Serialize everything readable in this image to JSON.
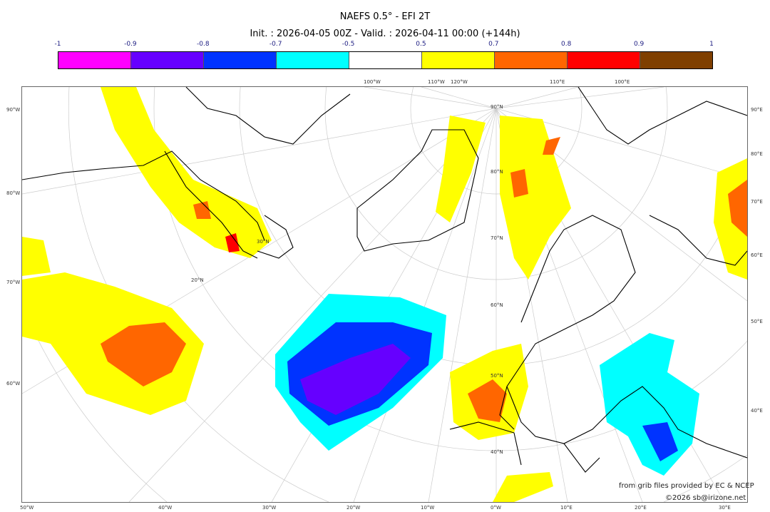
{
  "header": {
    "title": "NAEFS 0.5° - EFI 2T",
    "subtitle": "Init. : 2026-04-05 00Z - Valid. : 2026-04-11 00:00 (+144h)"
  },
  "colorbar": {
    "ticks": [
      "-1",
      "-0.9",
      "-0.8",
      "-0.7",
      "-0.5",
      "0.5",
      "0.7",
      "0.8",
      "0.9",
      "1"
    ],
    "colors": [
      "#ff00ff",
      "#6600ff",
      "#0033ff",
      "#00ffff",
      "#ffffff",
      "#ffff00",
      "#ff6600",
      "#ff0000",
      "#7f3f00"
    ]
  },
  "axes": {
    "left": [
      "90°W",
      "80°W",
      "70°W",
      "60°W"
    ],
    "right": [
      "90°E",
      "80°E",
      "70°E",
      "60°E",
      "50°E",
      "40°E"
    ],
    "bottom": [
      "50°W",
      "40°W",
      "30°W",
      "20°W",
      "10°W",
      "0°W",
      "10°E",
      "20°E",
      "30°E"
    ],
    "top": [
      "100°W",
      "110°W",
      "120°W",
      "110°E",
      "100°E"
    ],
    "lat": [
      "90°N",
      "80°N",
      "70°N",
      "60°N",
      "50°N",
      "40°N",
      "30°N",
      "20°N"
    ]
  },
  "credits": {
    "source": "from grib files provided by EC & NCEP",
    "copyright": "©2026 sb@irizone.net"
  }
}
